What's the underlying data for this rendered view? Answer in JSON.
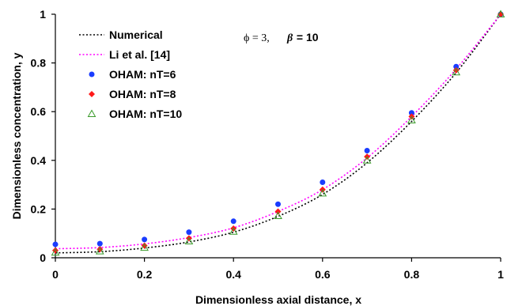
{
  "chart_data": {
    "type": "line",
    "xlabel": "Dimensionless axial distance, x",
    "ylabel": "Dimensionless concentration, y",
    "xlim": [
      0,
      1
    ],
    "ylim": [
      0,
      1
    ],
    "x_ticks": [
      "0",
      "0.2",
      "0.4",
      "0.6",
      "0.8",
      "1"
    ],
    "y_ticks": [
      "0",
      "0.2",
      "0.4",
      "0.6",
      "0.8",
      "1"
    ],
    "grid": false,
    "legend_position": "top-left",
    "annotation": {
      "phi_part": "ϕ = 3,",
      "beta_symbol": "β",
      "beta_value": " = 10"
    },
    "series": [
      {
        "name": "Numerical",
        "style": "dotted-line",
        "color": "#000000",
        "x": [
          0,
          0.1,
          0.2,
          0.3,
          0.4,
          0.5,
          0.6,
          0.7,
          0.8,
          0.9,
          1.0
        ],
        "values": [
          0.02,
          0.025,
          0.04,
          0.065,
          0.105,
          0.17,
          0.26,
          0.39,
          0.56,
          0.76,
          1.0
        ]
      },
      {
        "name": "Li et al. [14]",
        "style": "dotted-line",
        "color": "#ff00ff",
        "x": [
          0,
          0.1,
          0.2,
          0.3,
          0.4,
          0.5,
          0.6,
          0.7,
          0.8,
          0.9,
          1.0
        ],
        "values": [
          0.037,
          0.042,
          0.057,
          0.083,
          0.123,
          0.19,
          0.28,
          0.41,
          0.58,
          0.775,
          1.0
        ]
      },
      {
        "name": "OHAM: nT=6",
        "style": "circle-marker",
        "color": "#1a3cff",
        "x": [
          0,
          0.1,
          0.2,
          0.3,
          0.4,
          0.5,
          0.6,
          0.7,
          0.8,
          0.9,
          1.0
        ],
        "values": [
          0.055,
          0.058,
          0.075,
          0.105,
          0.15,
          0.22,
          0.31,
          0.44,
          0.595,
          0.785,
          1.0
        ]
      },
      {
        "name": "OHAM: nT=8",
        "style": "diamond-marker",
        "color": "#ff1a1a",
        "x": [
          0,
          0.1,
          0.2,
          0.3,
          0.4,
          0.5,
          0.6,
          0.7,
          0.8,
          0.9,
          1.0
        ],
        "values": [
          0.03,
          0.035,
          0.05,
          0.08,
          0.12,
          0.19,
          0.28,
          0.415,
          0.58,
          0.77,
          1.0
        ]
      },
      {
        "name": "OHAM: nT=10",
        "style": "triangle-marker",
        "color": "#3a9a2a",
        "x": [
          0,
          0.1,
          0.2,
          0.3,
          0.4,
          0.5,
          0.6,
          0.7,
          0.8,
          0.9,
          1.0
        ],
        "values": [
          0.022,
          0.027,
          0.042,
          0.068,
          0.108,
          0.172,
          0.265,
          0.4,
          0.565,
          0.762,
          1.0
        ]
      }
    ]
  }
}
